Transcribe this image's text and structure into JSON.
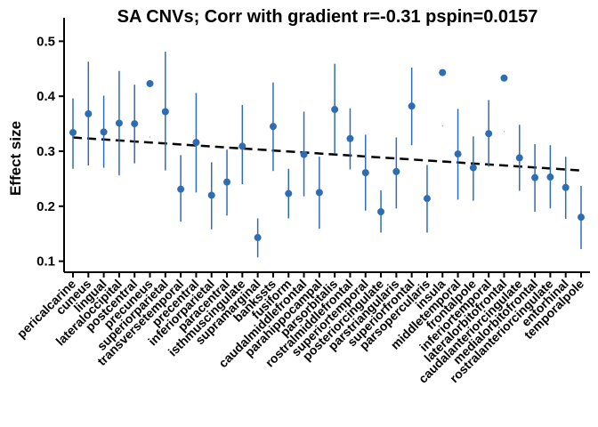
{
  "chart_data": {
    "type": "scatter",
    "title": "SA CNVs; Corr with gradient r=-0.31 pspin=0.0157",
    "xlabel": "",
    "ylabel": "Effect size",
    "ylim": [
      0.08,
      0.52
    ],
    "yticks": [
      0.1,
      0.2,
      0.3,
      0.4,
      0.5
    ],
    "grid": false,
    "point_color": "#2E6DB4",
    "trend_color": "#000000",
    "trend_line": {
      "y_start": 0.325,
      "y_end": 0.265,
      "style": "dashed"
    },
    "categories": [
      "pericalcarine",
      "cuneus",
      "lingual",
      "lateraloccipital",
      "postcentral",
      "precuneus",
      "superiorparietal",
      "transversetemporal",
      "precentral",
      "inferiorparietal",
      "paracentral",
      "isthmuscingulate",
      "supramarginal",
      "bankssts",
      "fusiform",
      "caudalmiddlefrontal",
      "parahippocampal",
      "parsorbitalis",
      "rostralmiddlefrontal",
      "superiortemporal",
      "posteriorcingulate",
      "parstriangularis",
      "superiorfrontal",
      "parsopercularis",
      "insula",
      "middletemporal",
      "frontalpole",
      "inferiortemporal",
      "lateralorbitofrontal",
      "caudalanteriorcingulate",
      "medialorbitofrontal",
      "rostralanteriorcingulate",
      "entorhinal",
      "temporalpole"
    ],
    "values": [
      0.334,
      0.368,
      0.335,
      0.351,
      0.35,
      0.423,
      0.372,
      0.231,
      0.316,
      0.22,
      0.244,
      0.309,
      0.143,
      0.345,
      0.223,
      0.294,
      0.225,
      0.376,
      0.323,
      0.261,
      0.19,
      0.263,
      0.382,
      0.214,
      0.443,
      0.295,
      0.27,
      0.332,
      0.433,
      0.288,
      0.252,
      0.253,
      0.234,
      0.18
    ],
    "lower": [
      0.268,
      0.274,
      0.27,
      0.256,
      0.278,
      null,
      0.265,
      0.172,
      0.225,
      0.158,
      0.183,
      0.24,
      0.107,
      0.264,
      0.178,
      0.218,
      0.159,
      0.295,
      0.267,
      0.192,
      0.152,
      0.196,
      0.311,
      0.152,
      null,
      0.212,
      0.21,
      0.272,
      null,
      0.228,
      0.19,
      0.196,
      0.177,
      0.122
    ],
    "upper": [
      0.396,
      0.463,
      0.401,
      0.446,
      0.421,
      null,
      0.481,
      0.293,
      0.406,
      0.28,
      0.303,
      0.384,
      0.178,
      0.425,
      0.268,
      0.372,
      0.29,
      0.459,
      0.378,
      0.33,
      0.229,
      0.325,
      0.452,
      0.275,
      null,
      0.377,
      0.327,
      0.393,
      null,
      0.348,
      0.313,
      0.311,
      0.29,
      0.237
    ]
  }
}
